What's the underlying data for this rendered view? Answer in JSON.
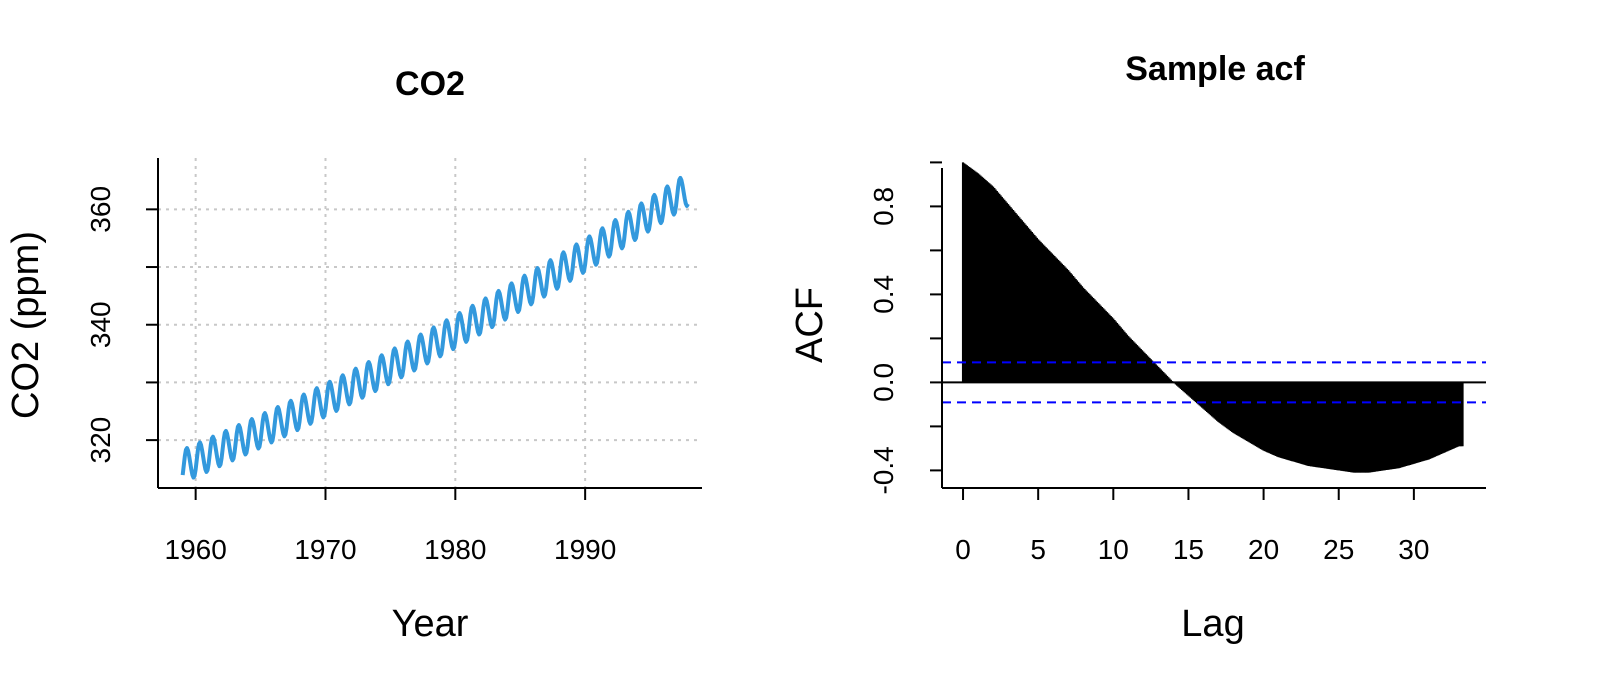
{
  "chart_data": [
    {
      "type": "line",
      "title": "CO2",
      "xlabel": "Year",
      "ylabel": "CO2 (ppm)",
      "xlim": [
        1957.1,
        1999.0
      ],
      "ylim": [
        311.7,
        368.9
      ],
      "xticks": [
        "1960",
        "1970",
        "1980",
        "1990"
      ],
      "yticks": [
        "320",
        "340",
        "360"
      ],
      "grid": true,
      "line_color": "#3399dd",
      "series": [
        {
          "x_start": 1959.0,
          "x_end": 1997.9,
          "points_per_year": 12,
          "trend": {
            "start": 315.5,
            "end": 363.5
          },
          "seasonal_amplitude": 2.8,
          "seasonal_peak_month": "May",
          "description_values": {
            "min": 313.2,
            "max": 366.8
          }
        }
      ]
    },
    {
      "type": "bar",
      "title": "Sample acf",
      "xlabel": "Lag",
      "ylabel": "ACF",
      "xlim": [
        -1.4,
        34.8
      ],
      "ylim": [
        -0.48,
        1.02
      ],
      "xticks": [
        "0",
        "5",
        "10",
        "15",
        "20",
        "25",
        "30"
      ],
      "yticks": [
        "-0.4",
        "0.0",
        "0.4",
        "0.8"
      ],
      "confidence_band": 0.091,
      "band_color": "#0000ff",
      "lag_max": 33.3,
      "lag_step": 0.0833,
      "acf_values": [
        [
          0.0,
          1.0
        ],
        [
          1.0,
          0.95
        ],
        [
          2.0,
          0.89
        ],
        [
          3.0,
          0.81
        ],
        [
          4.0,
          0.73
        ],
        [
          5.0,
          0.65
        ],
        [
          6.0,
          0.58
        ],
        [
          7.0,
          0.51
        ],
        [
          8.0,
          0.43
        ],
        [
          9.0,
          0.36
        ],
        [
          10.0,
          0.29
        ],
        [
          11.0,
          0.21
        ],
        [
          12.0,
          0.14
        ],
        [
          13.0,
          0.07
        ],
        [
          14.0,
          0.0
        ],
        [
          15.0,
          -0.06
        ],
        [
          16.0,
          -0.12
        ],
        [
          17.0,
          -0.18
        ],
        [
          18.0,
          -0.23
        ],
        [
          19.0,
          -0.27
        ],
        [
          20.0,
          -0.31
        ],
        [
          21.0,
          -0.34
        ],
        [
          22.0,
          -0.36
        ],
        [
          23.0,
          -0.38
        ],
        [
          24.0,
          -0.39
        ],
        [
          25.0,
          -0.4
        ],
        [
          26.0,
          -0.41
        ],
        [
          27.0,
          -0.41
        ],
        [
          28.0,
          -0.4
        ],
        [
          29.0,
          -0.39
        ],
        [
          30.0,
          -0.37
        ],
        [
          31.0,
          -0.35
        ],
        [
          32.0,
          -0.32
        ],
        [
          33.0,
          -0.29
        ]
      ]
    }
  ]
}
